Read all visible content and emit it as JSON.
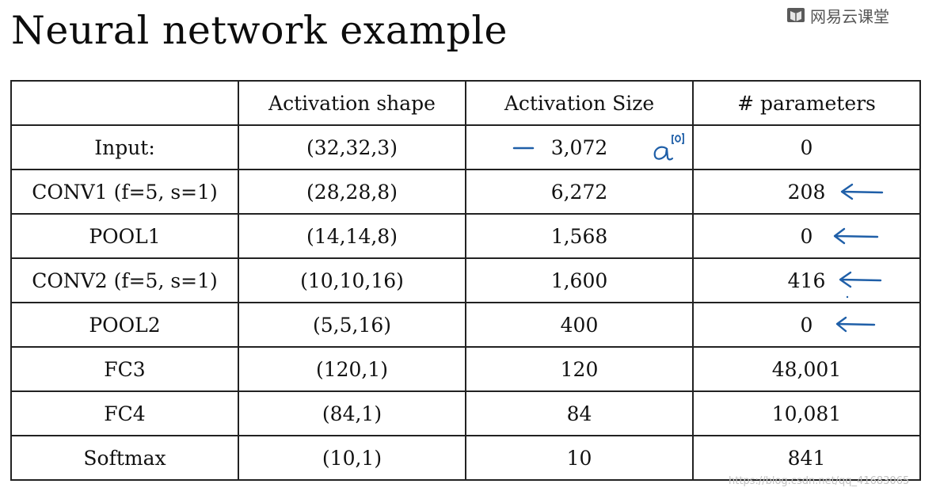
{
  "title": "Neural network example",
  "brand": {
    "text": "网易云课堂",
    "icon": "netease-logo-icon"
  },
  "table": {
    "headers": [
      "",
      "Activation shape",
      "Activation Size",
      "# parameters"
    ],
    "rows": [
      {
        "layer": "Input:",
        "shape": "(32,32,3)",
        "size": "3,072",
        "params": "0"
      },
      {
        "layer": "CONV1 (f=5, s=1)",
        "shape": "(28,28,8)",
        "size": "6,272",
        "params": "208"
      },
      {
        "layer": "POOL1",
        "shape": "(14,14,8)",
        "size": "1,568",
        "params": "0"
      },
      {
        "layer": "CONV2  (f=5, s=1)",
        "shape": "(10,10,16)",
        "size": "1,600",
        "params": "416"
      },
      {
        "layer": "POOL2",
        "shape": "(5,5,16)",
        "size": "400",
        "params": "0"
      },
      {
        "layer": "FC3",
        "shape": "(120,1)",
        "size": "120",
        "params": "48,001"
      },
      {
        "layer": "FC4",
        "shape": "(84,1)",
        "size": "84",
        "params": "10,081"
      },
      {
        "layer": "Softmax",
        "shape": "(10,1)",
        "size": "10",
        "params": "841"
      }
    ]
  },
  "annotations": {
    "color": "#1f5fa8",
    "input_note": "a[0]",
    "arrow_rows": [
      "CONV1 (f=5, s=1)",
      "POOL1",
      "CONV2  (f=5, s=1)",
      "POOL2"
    ]
  },
  "watermark": "https://blog.csdn.net/qq_41683065"
}
